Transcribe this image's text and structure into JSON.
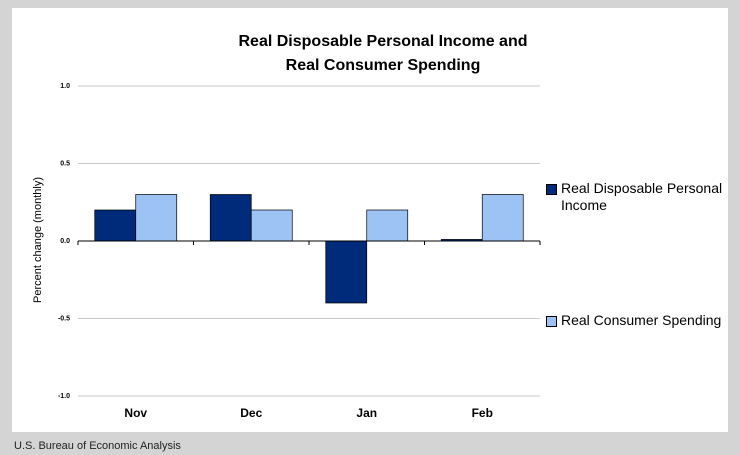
{
  "chart_data": {
    "type": "bar",
    "title": "Real Disposable Personal Income and Real Consumer Spending",
    "y_label": "Percent change (monthly)",
    "categories": [
      "Nov",
      "Dec",
      "Jan",
      "Feb"
    ],
    "series": [
      {
        "name": "Real Disposable Personal Income",
        "color": "#002a7a",
        "values": [
          0.2,
          0.3,
          -0.4,
          0.01
        ]
      },
      {
        "name": "Real Consumer Spending",
        "color": "#9dc3f5",
        "values": [
          0.3,
          0.2,
          0.2,
          0.3
        ]
      }
    ],
    "ylim": [
      -1.0,
      1.0
    ],
    "yticks": [
      {
        "value": -1.0,
        "label": "-1.0"
      },
      {
        "value": -0.5,
        "label": "-0.5"
      },
      {
        "value": 0,
        "label": "0.0"
      },
      {
        "value": 0.5,
        "label": "0.5"
      },
      {
        "value": 1.0,
        "label": "1.0"
      }
    ],
    "grid": true
  },
  "source": "U.S. Bureau of Economic Analysis"
}
